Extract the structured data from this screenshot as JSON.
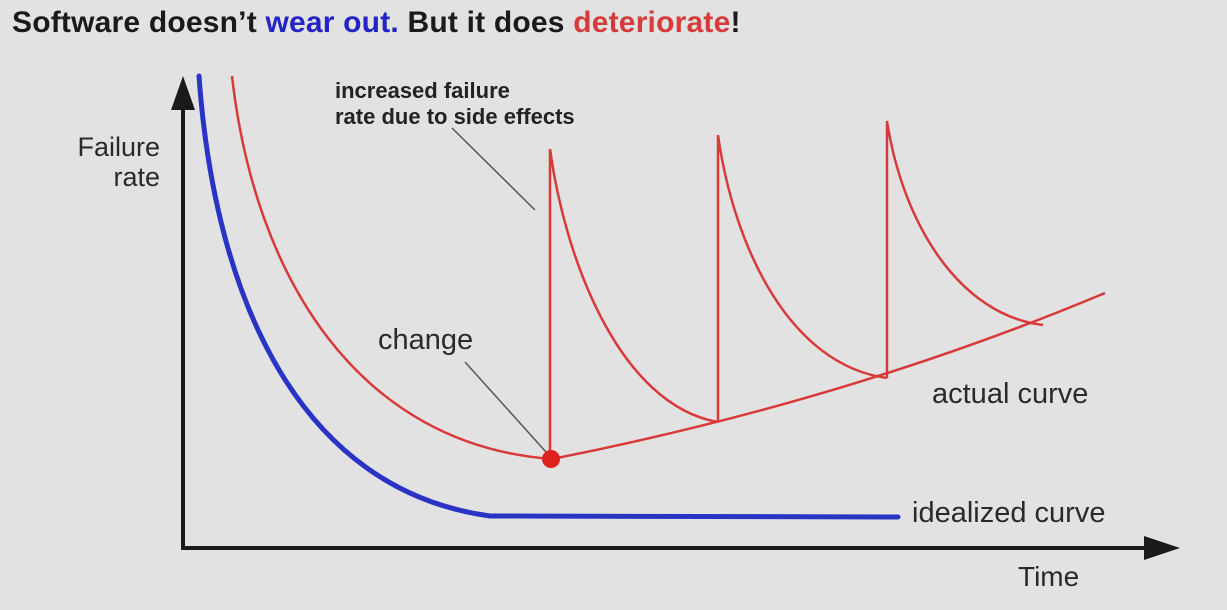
{
  "title": {
    "part1": "Software doesn’t ",
    "part2": "wear out.",
    "part3": " But it does ",
    "part4": "deteriorate",
    "part5": "!"
  },
  "y_axis_label_line1": "Failure",
  "y_axis_label_line2": "rate",
  "x_axis_label": "Time",
  "annotation_line1": "increased failure",
  "annotation_line2": "rate due to side effects",
  "change_label": "change",
  "actual_curve_label": "actual curve",
  "idealized_curve_label": "idealized curve",
  "colors": {
    "idealized_curve": "#2a34c4",
    "actual_curve": "#d83a3a",
    "axes": "#1a1a1a",
    "title_blue": "#2323c8",
    "title_red": "#d63a3a"
  }
}
